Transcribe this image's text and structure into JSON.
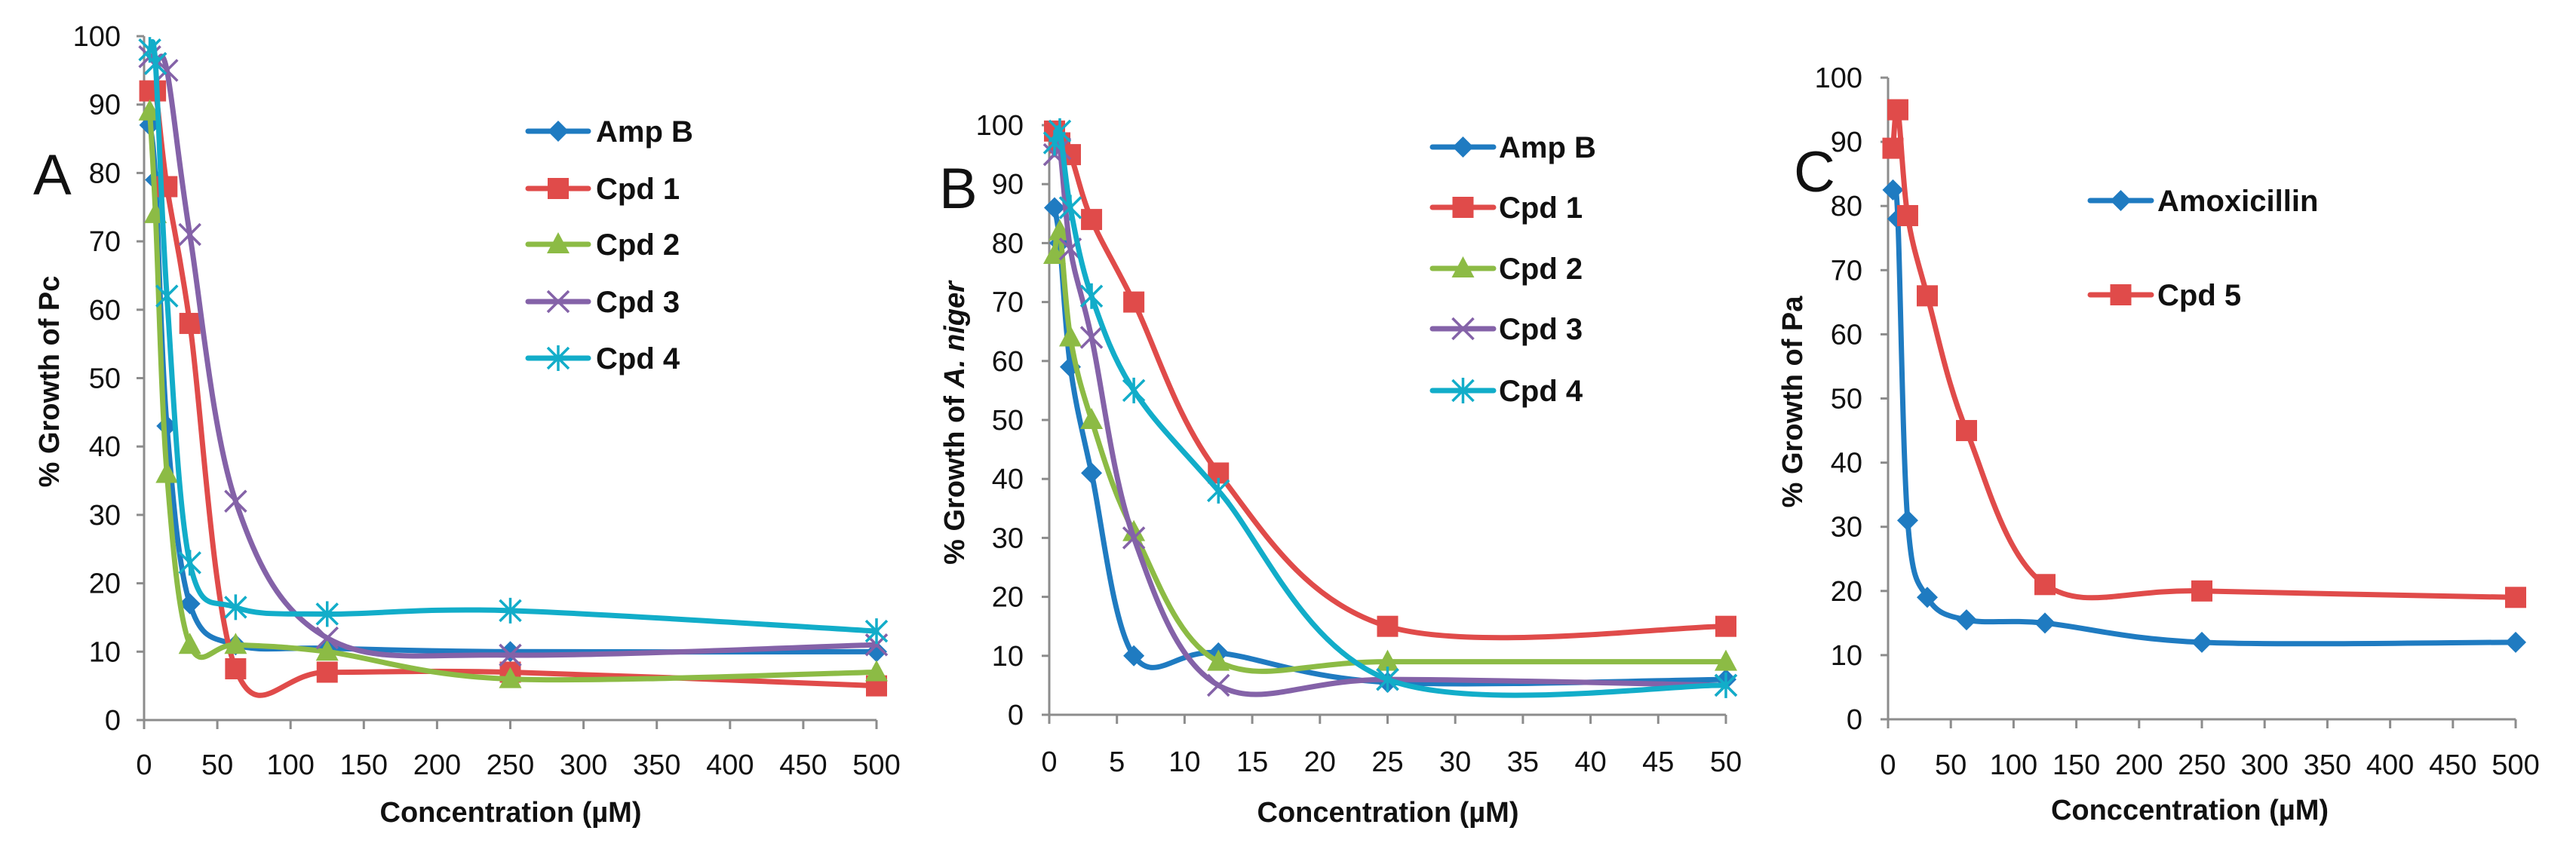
{
  "colors": {
    "blue": "#1f7bc1",
    "red": "#e04b4a",
    "green": "#8cbb45",
    "purple": "#8462a8",
    "cyan": "#12adc9",
    "axis": "#8c8c8c"
  },
  "chart_data": [
    {
      "panel_label": "A",
      "type": "line",
      "smooth": true,
      "xlabel": "Concentration (µM)",
      "ylabel": "% Growth of Pc",
      "xlim": [
        0,
        500
      ],
      "ylim": [
        0,
        100
      ],
      "xticks": [
        0,
        50,
        100,
        150,
        200,
        250,
        300,
        350,
        400,
        450,
        500
      ],
      "yticks": [
        0,
        10,
        20,
        30,
        40,
        50,
        60,
        70,
        80,
        90,
        100
      ],
      "grid": false,
      "legend_position": "top-right",
      "x": [
        3.9,
        7.8,
        15.6,
        31.25,
        62.5,
        125,
        250,
        500
      ],
      "series": [
        {
          "name": "Amp B",
          "color": "#1f7bc1",
          "marker": "diamond",
          "values": [
            87,
            79,
            43,
            17,
            11,
            10.5,
            10,
            10
          ]
        },
        {
          "name": "Cpd 1",
          "color": "#e04b4a",
          "marker": "square",
          "values": [
            92,
            92,
            78,
            58,
            7.5,
            7,
            7,
            5
          ]
        },
        {
          "name": "Cpd 2",
          "color": "#8cbb45",
          "marker": "triangle",
          "values": [
            89,
            74,
            36,
            11,
            11,
            10,
            6,
            7
          ]
        },
        {
          "name": "Cpd 3",
          "color": "#8462a8",
          "marker": "x",
          "values": [
            97,
            96,
            95,
            71,
            32,
            12,
            9.5,
            11
          ]
        },
        {
          "name": "Cpd 4",
          "color": "#12adc9",
          "marker": "asterisk",
          "values": [
            98,
            96,
            62,
            23,
            16.5,
            15.5,
            16,
            13
          ]
        }
      ]
    },
    {
      "panel_label": "B",
      "type": "line",
      "smooth": true,
      "xlabel": "Concentration (µM)",
      "ylabel": "% Growth of A. niger",
      "xlim": [
        0,
        50
      ],
      "ylim": [
        0,
        100
      ],
      "xticks": [
        0,
        5,
        10,
        15,
        20,
        25,
        30,
        35,
        40,
        45,
        50
      ],
      "yticks": [
        0,
        10,
        20,
        30,
        40,
        50,
        60,
        70,
        80,
        90,
        100
      ],
      "grid": false,
      "legend_position": "top-right",
      "x": [
        0.39,
        0.78,
        1.56,
        3.125,
        6.25,
        12.5,
        25,
        50
      ],
      "series": [
        {
          "name": "Amp B",
          "color": "#1f7bc1",
          "marker": "diamond",
          "values": [
            86,
            80,
            59,
            41,
            10,
            10.5,
            5.5,
            6
          ]
        },
        {
          "name": "Cpd 1",
          "color": "#e04b4a",
          "marker": "square",
          "values": [
            99,
            97,
            95,
            84,
            70,
            41,
            15,
            15
          ]
        },
        {
          "name": "Cpd 2",
          "color": "#8cbb45",
          "marker": "triangle",
          "values": [
            78,
            82,
            64,
            50,
            31,
            9,
            9,
            9
          ]
        },
        {
          "name": "Cpd 3",
          "color": "#8462a8",
          "marker": "x",
          "values": [
            95,
            96,
            79,
            64,
            30,
            5,
            6,
            5
          ]
        },
        {
          "name": "Cpd 4",
          "color": "#12adc9",
          "marker": "asterisk",
          "values": [
            97,
            99,
            86,
            71,
            55,
            38,
            6,
            5
          ]
        }
      ]
    },
    {
      "panel_label": "C",
      "type": "line",
      "smooth": true,
      "xlabel": "Conccentration (µM)",
      "ylabel": "% Growth of Pa",
      "xlim": [
        0,
        500
      ],
      "ylim": [
        0,
        100
      ],
      "xticks": [
        0,
        50,
        100,
        150,
        200,
        250,
        300,
        350,
        400,
        450,
        500
      ],
      "yticks": [
        0,
        10,
        20,
        30,
        40,
        50,
        60,
        70,
        80,
        90,
        100
      ],
      "grid": false,
      "legend_position": "top-right",
      "x": [
        3.9,
        7.8,
        15.6,
        31.25,
        62.5,
        125,
        250,
        500
      ],
      "series": [
        {
          "name": "Amoxicillin",
          "color": "#1f7bc1",
          "marker": "diamond",
          "values": [
            82.5,
            78,
            31,
            19,
            15.5,
            15,
            12,
            12
          ]
        },
        {
          "name": "Cpd 5",
          "color": "#e04b4a",
          "marker": "square",
          "values": [
            89,
            95,
            78.5,
            66,
            45,
            21,
            20,
            19
          ]
        }
      ]
    }
  ]
}
